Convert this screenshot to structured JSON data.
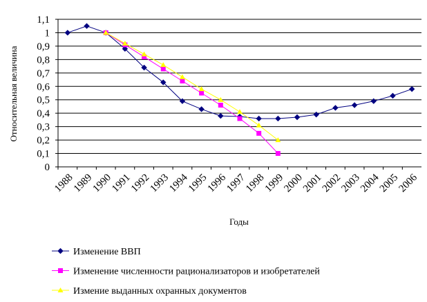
{
  "chart_data": {
    "type": "line",
    "x_label": "Годы",
    "y_label": "Относительная величина",
    "categories": [
      "1988",
      "1989",
      "1990",
      "1991",
      "1992",
      "1993",
      "1994",
      "1995",
      "1996",
      "1997",
      "1998",
      "1999",
      "2000",
      "2001",
      "2002",
      "2003",
      "2004",
      "2005",
      "2006"
    ],
    "series": [
      {
        "name": "Изменение ВВП",
        "color": "#000080",
        "marker": "diamond",
        "values": [
          1.0,
          1.05,
          1.0,
          0.88,
          0.74,
          0.63,
          0.49,
          0.43,
          0.38,
          0.375,
          0.36,
          0.36,
          0.37,
          0.39,
          0.44,
          0.46,
          0.49,
          0.53,
          0.58
        ]
      },
      {
        "name": "Изменение численности  рационализаторов  и изобретателей",
        "color": "#ff00ff",
        "marker": "square",
        "values": [
          null,
          null,
          1.0,
          0.91,
          0.82,
          0.73,
          0.64,
          0.55,
          0.46,
          0.36,
          0.25,
          0.1,
          null,
          null,
          null,
          null,
          null,
          null,
          null
        ]
      },
      {
        "name": "Измение  выданных  охранных  документов",
        "color": "#ffff00",
        "marker": "triangle",
        "values": [
          null,
          null,
          1.0,
          0.92,
          0.84,
          0.76,
          0.67,
          0.58,
          0.5,
          0.41,
          0.31,
          0.2,
          null,
          null,
          null,
          null,
          null,
          null,
          null
        ]
      }
    ],
    "ylim": [
      0,
      1.1
    ],
    "yticks": [
      0,
      {
        "value": 0.1,
        "label": "0,1"
      },
      {
        "value": 0.2,
        "label": "0,2"
      },
      {
        "value": 0.3,
        "label": "0,3"
      },
      {
        "value": 0.4,
        "label": "0,4"
      },
      {
        "value": 0.5,
        "label": "0,5"
      },
      {
        "value": 0.6,
        "label": "0,6"
      },
      {
        "value": 0.7,
        "label": "0,7"
      },
      {
        "value": 0.8,
        "label": "0,8"
      },
      {
        "value": 0.9,
        "label": "0,9"
      },
      1,
      {
        "value": 1.1,
        "label": "1,1"
      }
    ],
    "grid": true
  }
}
